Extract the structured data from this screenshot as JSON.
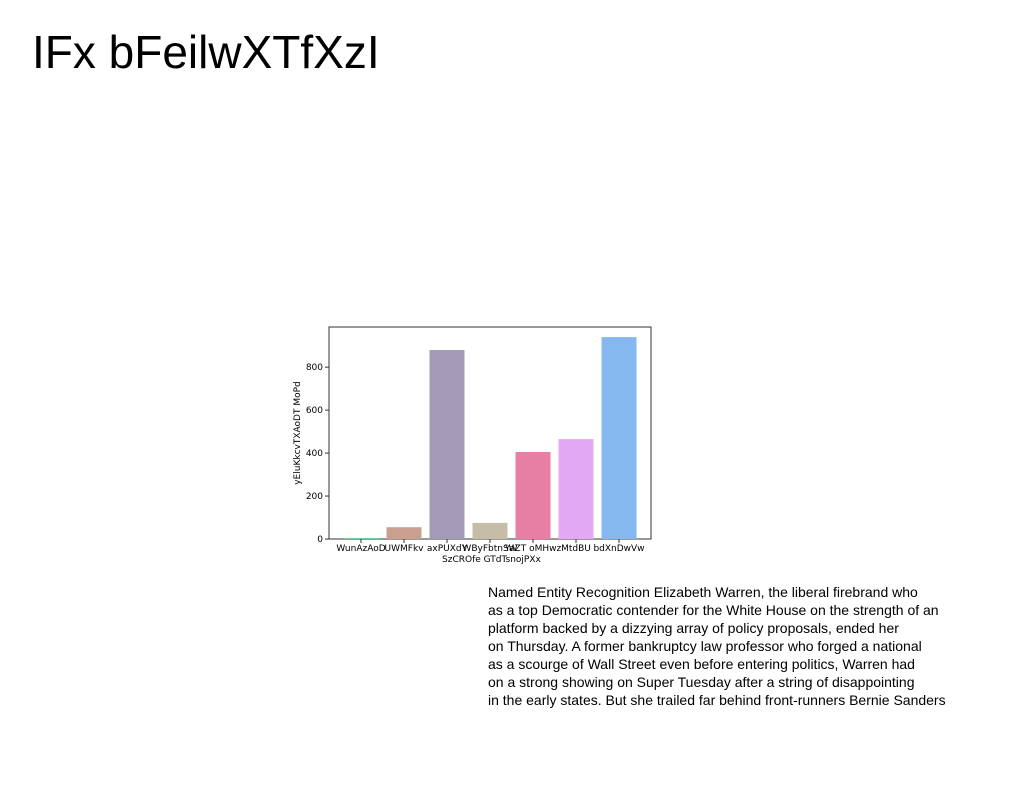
{
  "header": {
    "title": "IFx bFeilwXTfXzI"
  },
  "chart_data": {
    "type": "bar",
    "ylabel": "yEluKkcvTXAoDT MoPd",
    "categories": [
      "WunAzAoD",
      "UWMFkv",
      "axPUXdY",
      "WByFbtnSW SzCROfe GTdTsnojPXx",
      "YaZT oMHwz",
      "MtdBU",
      "bdXnDwVw"
    ],
    "values": [
      5,
      55,
      880,
      75,
      405,
      465,
      940
    ],
    "colors": [
      "#6fd39a",
      "#c9a08f",
      "#a39bb6",
      "#c6bda8",
      "#e67fa3",
      "#e3a8f4",
      "#86b8f0"
    ],
    "ylim": [
      0,
      987
    ],
    "yticks": [
      0,
      200,
      400,
      600,
      800
    ]
  },
  "paragraph": {
    "lines": [
      "Named Entity Recognition Elizabeth Warren, the liberal firebrand who",
      "as a top Democratic contender for the White House on the strength of an",
      "platform backed by a dizzying array of policy proposals, ended her",
      "on Thursday. A former bankruptcy law professor who forged a national",
      "as a scourge of Wall Street even before entering politics, Warren had",
      "on a strong showing on Super Tuesday after a string of disappointing",
      "in the early states. But she trailed far behind front-runners Bernie Sanders"
    ]
  }
}
